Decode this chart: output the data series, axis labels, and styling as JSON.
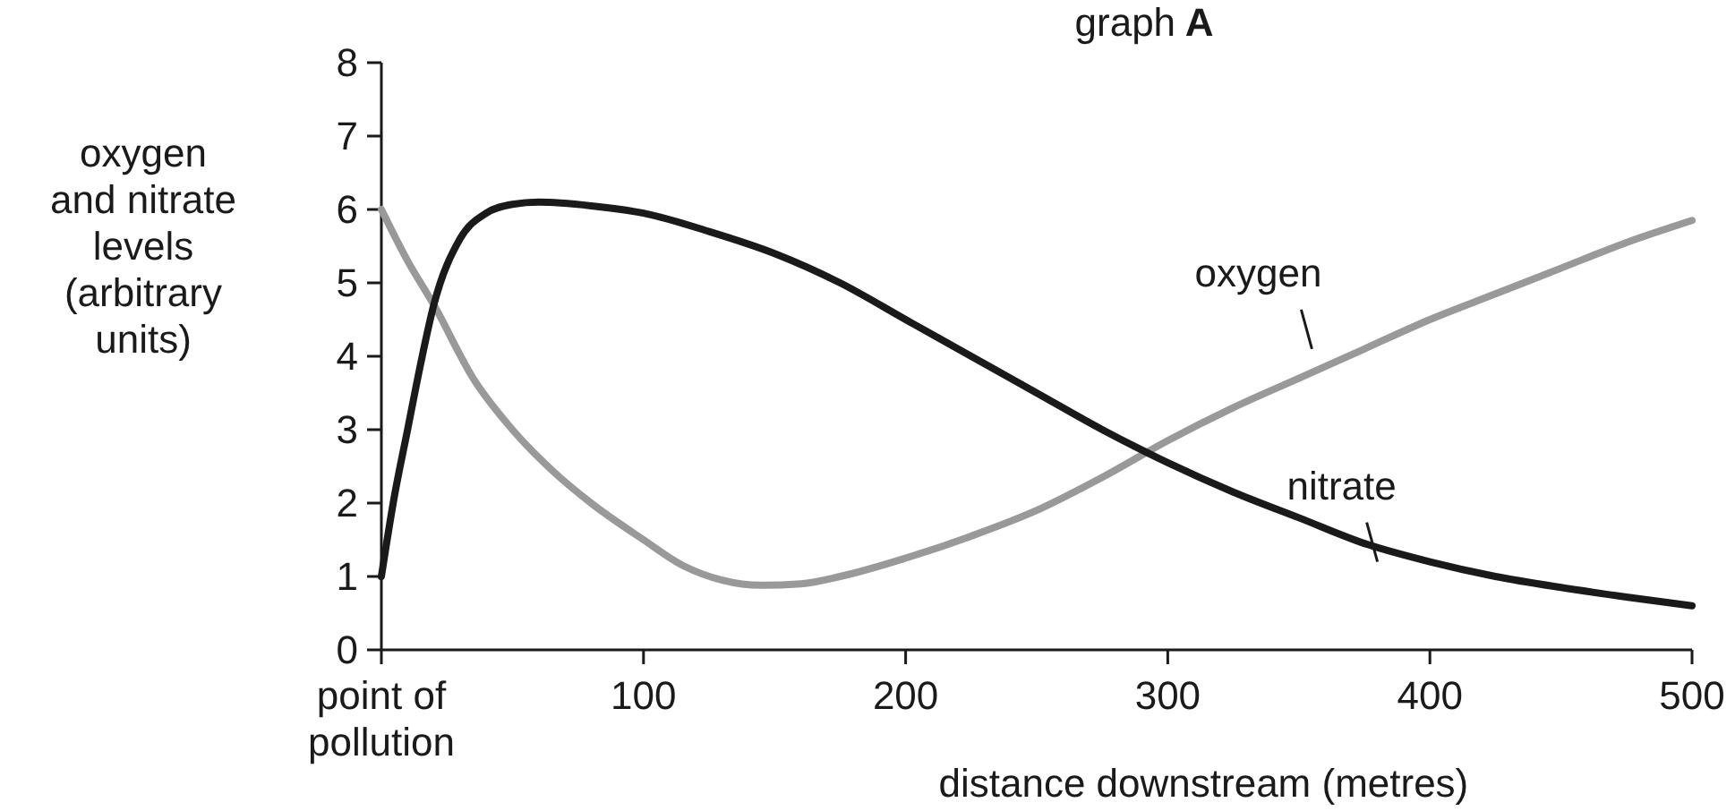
{
  "chart_data": {
    "type": "line",
    "title": "graph A",
    "xlabel": "distance downstream (metres)",
    "ylabel": "oxygen\nand nitrate\nlevels\n(arbitrary\nunits)",
    "xlim": [
      0,
      500
    ],
    "ylim": [
      0,
      8
    ],
    "xticks": [
      {
        "value": 0,
        "label": "point of\npollution"
      },
      100,
      200,
      300,
      400,
      500
    ],
    "yticks": [
      0,
      1,
      2,
      3,
      4,
      5,
      6,
      7,
      8
    ],
    "grid": false,
    "marker": "none",
    "line_style": "solid",
    "series": [
      {
        "name": "oxygen",
        "color": "#999999",
        "x": [
          0,
          10,
          20,
          35,
          50,
          65,
          80,
          100,
          115,
          130,
          145,
          160,
          175,
          200,
          225,
          250,
          275,
          300,
          325,
          350,
          375,
          400,
          425,
          450,
          475,
          500
        ],
        "values": [
          6,
          5.3,
          4.7,
          3.7,
          3.0,
          2.45,
          2.0,
          1.5,
          1.15,
          0.95,
          0.88,
          0.9,
          1.0,
          1.25,
          1.55,
          1.9,
          2.35,
          2.85,
          3.3,
          3.7,
          4.1,
          4.5,
          4.85,
          5.2,
          5.55,
          5.85
        ]
      },
      {
        "name": "nitrate",
        "color": "#1a1a1a",
        "x": [
          0,
          5,
          10,
          15,
          20,
          30,
          40,
          50,
          60,
          80,
          100,
          125,
          150,
          175,
          200,
          225,
          250,
          275,
          300,
          325,
          350,
          375,
          400,
          425,
          450,
          475,
          500
        ],
        "values": [
          1,
          2.1,
          3.0,
          3.9,
          4.7,
          5.6,
          5.95,
          6.07,
          6.1,
          6.05,
          5.95,
          5.7,
          5.4,
          5.0,
          4.5,
          4.0,
          3.5,
          3.0,
          2.55,
          2.15,
          1.8,
          1.45,
          1.2,
          1.0,
          0.85,
          0.72,
          0.6
        ]
      }
    ]
  }
}
